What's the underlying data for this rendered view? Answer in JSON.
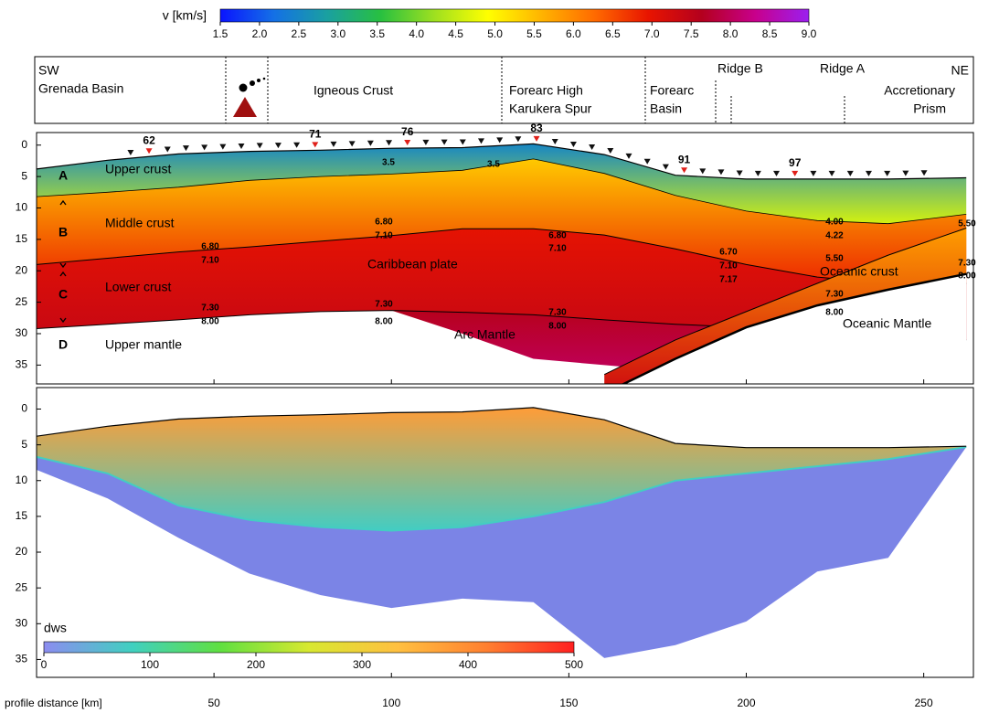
{
  "chart_data": {
    "type": "velocity-section",
    "xlabel": "profile distance [km]",
    "xlim": [
      0,
      264
    ],
    "xticks": [
      50,
      100,
      150,
      200,
      250
    ],
    "velocity_colorbar": {
      "label": "v [km/s]",
      "lim": [
        1.5,
        9.0
      ],
      "ticks": [
        1.5,
        {
          "value": 2,
          "label": "2.0"
        },
        2.5,
        {
          "value": 3,
          "label": "3.0"
        },
        3.5,
        {
          "value": 4,
          "label": "4.0"
        },
        4.5,
        {
          "value": 5,
          "label": "5.0"
        },
        5.5,
        {
          "value": 6,
          "label": "6.0"
        },
        6.5,
        {
          "value": 7,
          "label": "7.0"
        },
        7.5,
        {
          "value": 8,
          "label": "8.0"
        },
        8.5,
        {
          "value": 9,
          "label": "9.0"
        }
      ],
      "colors": [
        "#0a14ff",
        "#1470e6",
        "#1aa0a0",
        "#28c040",
        "#9ee020",
        "#ffff00",
        "#ffb400",
        "#ff6a00",
        "#e81400",
        "#b4001e",
        "#c8008c",
        "#9b1ff0"
      ]
    },
    "regions": [
      "SW",
      "Grenada Basin",
      "Igneous Crust",
      "Forearc High",
      "Karukera Spur",
      "Forearc",
      "Basin",
      "Ridge B",
      "Ridge A",
      "NE",
      "Accretionary",
      "Prism"
    ],
    "stations": {
      "x": [
        26.5,
        31.7,
        36.9,
        42.1,
        47.3,
        52.5,
        57.7,
        62.9,
        68.1,
        73.3,
        78.5,
        83.7,
        88.9,
        94.1,
        99.3,
        104.5,
        109.7,
        114.9,
        120.1,
        125.3,
        130.5,
        135.7,
        140.9,
        146.1,
        151.3,
        156.5,
        161.7,
        166.9,
        172.1,
        177.3,
        182.5,
        187.7,
        192.9,
        198.1,
        203.3,
        208.5,
        213.7,
        218.9,
        224.1,
        229.3,
        234.5,
        239.7,
        244.9,
        250.1
      ],
      "labels": [
        null,
        "62",
        null,
        null,
        null,
        null,
        null,
        null,
        null,
        null,
        "71",
        null,
        null,
        null,
        null,
        "76",
        null,
        null,
        null,
        null,
        null,
        null,
        "83",
        null,
        null,
        null,
        null,
        null,
        null,
        null,
        "91",
        null,
        null,
        null,
        null,
        null,
        "97",
        null,
        null,
        null,
        null,
        null,
        null,
        null
      ],
      "color": "#111111",
      "label_color": "#e0201a"
    },
    "model": {
      "ylim": [
        38,
        -2
      ],
      "yticks": [
        0,
        5,
        10,
        15,
        20,
        25,
        30,
        35
      ],
      "x": [
        0,
        20,
        40,
        60,
        80,
        100,
        120,
        140,
        160,
        180,
        200,
        220,
        240,
        262
      ],
      "boundaries": [
        {
          "values": [
            3.8,
            2.4,
            1.4,
            1.0,
            0.8,
            0.5,
            0.4,
            -0.2,
            1.5,
            4.8,
            5.4,
            5.4,
            5.4,
            5.2
          ],
          "width": 1.2
        },
        {
          "values": [
            8.2,
            7.5,
            6.7,
            5.6,
            5.0,
            4.6,
            4.0,
            2.2,
            4.5,
            8.0,
            10.5,
            12,
            12.5,
            11
          ],
          "width": 0.8
        },
        {
          "values": [
            19,
            18,
            17,
            16.2,
            15.3,
            14.4,
            13.3,
            13.3,
            14.3,
            16.5,
            19,
            21,
            22,
            22
          ],
          "width": 1
        },
        {
          "values": [
            29.2,
            28.5,
            27.8,
            27,
            26.5,
            26.3,
            26.6,
            27,
            27.8,
            28.5,
            29,
            30,
            31,
            31
          ],
          "width": 1
        },
        {
          "values": [
            null,
            null,
            null,
            null,
            null,
            26.3,
            30,
            34,
            35,
            36,
            36,
            null,
            null,
            null
          ],
          "width": 0
        },
        {
          "values": [
            null,
            null,
            null,
            null,
            null,
            null,
            null,
            null,
            36.5,
            31,
            26.5,
            22,
            17.5,
            13.2
          ],
          "width": 1
        },
        {
          "values": [
            null,
            null,
            null,
            null,
            null,
            null,
            null,
            null,
            39.5,
            34,
            29,
            25.5,
            23,
            20.5
          ],
          "width": 2.5
        }
      ],
      "layer_v": [
        [
          2.5,
          4.6
        ],
        [
          5.4,
          6.8
        ],
        [
          7.0,
          7.4
        ],
        [
          7.6,
          8.0
        ],
        null,
        [
          5.8,
          7.3
        ]
      ],
      "labels": [
        "Upper crust",
        "Middle crust",
        "Lower crust",
        "Upper mantle",
        "Caribbean plate",
        "Arc Mantle",
        "Oceanic crust",
        "Oceanic Mantle"
      ],
      "layer_letters": [
        "A",
        "B",
        "C",
        "D"
      ],
      "contour_labels": [
        "3.5",
        "3.5",
        "6.80",
        "7.10",
        "6.80",
        "7.10",
        "6.80",
        "7.10",
        "6.70",
        "7.10",
        "7.17",
        "4.00",
        "4.22",
        "5.50",
        "5.50",
        "7.30",
        "8.00",
        "7.30",
        "8.00",
        "7.30",
        "8.00",
        "7.30",
        "8.00",
        "7.30",
        "8.00"
      ]
    },
    "coverage": {
      "ylim": [
        37.5,
        -3
      ],
      "yticks": [
        0,
        5,
        10,
        15,
        20,
        25,
        30,
        35
      ],
      "ray_bottom": [
        8.5,
        12.5,
        18,
        23,
        26,
        27.8,
        26.5,
        27,
        34.8,
        33,
        29.7,
        22.7,
        20.8,
        5.3
      ],
      "dense_bottom": [
        6.7,
        9,
        13.5,
        15.5,
        16.5,
        17,
        16.5,
        15,
        13,
        10,
        9,
        8,
        7,
        5.3
      ],
      "dense_dws": [
        380,
        80
      ],
      "ray_color": "#7b84e6",
      "colorbar": {
        "label": "dws",
        "lim": [
          0,
          500
        ],
        "ticks": [
          0,
          100,
          200,
          300,
          400,
          500
        ],
        "colors": [
          "#8c8cf0",
          "#40d0c0",
          "#60e040",
          "#d8e830",
          "#ffc040",
          "#ff8030",
          "#ff2020"
        ]
      }
    }
  }
}
